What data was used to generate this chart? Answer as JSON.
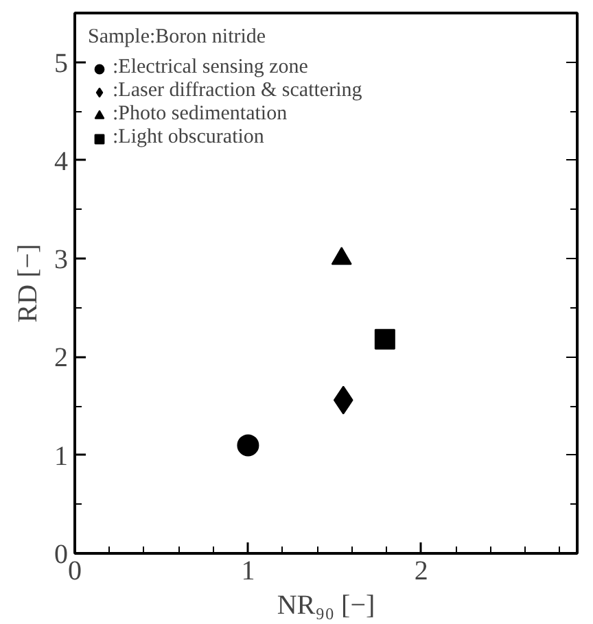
{
  "chart_data": {
    "type": "scatter",
    "xlabel": "NR₉₀ [−]",
    "ylabel": "RD [−]",
    "legend_title": "Sample:Boron nitride",
    "legend": "top left",
    "grid": false,
    "xlim": [
      0,
      2.9
    ],
    "xticks": [
      0,
      1,
      2
    ],
    "ylim": [
      0,
      5.5
    ],
    "yticks": [
      0,
      1,
      2,
      3,
      4,
      5
    ],
    "series": [
      {
        "name": ":Electrical sensing zone",
        "color": "#000000",
        "marker": "circle",
        "x": [
          1.0
        ],
        "values": [
          1.1
        ]
      },
      {
        "name": ":Laser diffraction & scattering",
        "color": "#000000",
        "marker": "diamond",
        "x": [
          1.55
        ],
        "values": [
          1.56
        ]
      },
      {
        "name": ":Photo sedimentation",
        "color": "#000000",
        "marker": "triangle",
        "x": [
          1.54
        ],
        "values": [
          3.0
        ]
      },
      {
        "name": ":Light obscuration",
        "color": "#000000",
        "marker": "square",
        "x": [
          1.79
        ],
        "values": [
          2.18
        ]
      }
    ]
  }
}
